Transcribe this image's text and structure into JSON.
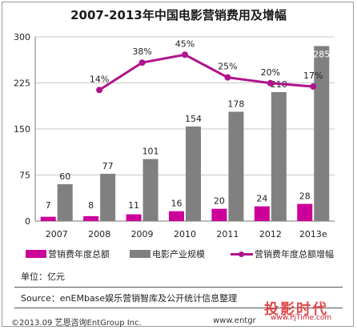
{
  "colors": {
    "bar_marketing": "#cc0099",
    "bar_box_office": "#808080",
    "line_growth": "#b0138c",
    "gridline": "#c8c8c8",
    "axis": "#777777"
  },
  "chart_data": {
    "type": "bar",
    "title": "2007-2013年中国电影营销费用及增幅",
    "categories": [
      "2007",
      "2008",
      "2009",
      "2010",
      "2011",
      "2012",
      "2013e"
    ],
    "series": [
      {
        "name": "营销费年度总额",
        "type": "bar",
        "values": [
          7,
          8,
          11,
          16,
          20,
          24,
          28
        ],
        "labels": [
          "7",
          "8",
          "11",
          "16",
          "20",
          "24",
          "28"
        ]
      },
      {
        "name": "电影产业规模",
        "type": "bar",
        "values": [
          60,
          77,
          101,
          154,
          178,
          210,
          285
        ],
        "labels": [
          "60",
          "77",
          "101",
          "154",
          "178",
          "210",
          "285"
        ]
      },
      {
        "name": "营销费年度总额增幅",
        "type": "line",
        "values": [
          null,
          14,
          38,
          45,
          25,
          20,
          17
        ],
        "labels": [
          "",
          "14%",
          "38%",
          "45%",
          "25%",
          "20%",
          "17%"
        ]
      }
    ],
    "y_ticks": [
      "0",
      "75",
      "150",
      "225",
      "300"
    ],
    "ylim": [
      0,
      300
    ],
    "line_scale_note": "growth line plotted on secondary scale (no axis shown)",
    "grid": true,
    "legend_position": "bottom"
  },
  "footer": {
    "unit": "单位：亿元",
    "source": "Source：enEMbase娱乐营销智库及公开统计信息整理",
    "copyright": "©2013.09  艺恩咨询EntGroup Inc.",
    "site": "www.entgr",
    "watermark": "投影时代",
    "watermark_url": "www.PjTime.com"
  }
}
